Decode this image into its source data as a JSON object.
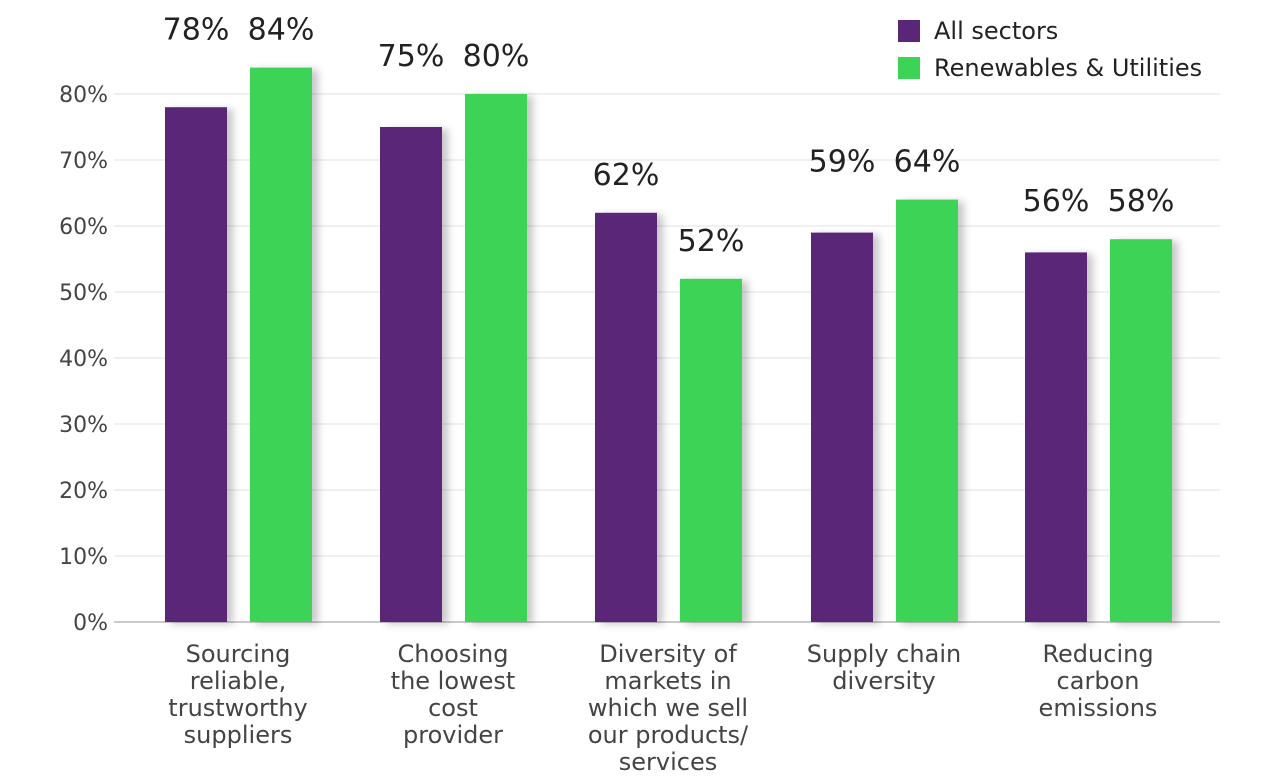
{
  "chart_data": {
    "type": "bar",
    "categories": [
      [
        "Sourcing",
        "reliable,",
        "trustworthy",
        "suppliers"
      ],
      [
        "Choosing",
        "the lowest",
        "cost",
        "provider"
      ],
      [
        "Diversity of",
        "markets in",
        "which we sell",
        "our products/",
        "services"
      ],
      [
        "Supply chain",
        "diversity"
      ],
      [
        "Reducing",
        "carbon",
        "emissions"
      ]
    ],
    "series": [
      {
        "name": "All sectors",
        "color": "#5a2678",
        "values": [
          78,
          75,
          62,
          59,
          56
        ],
        "labels": [
          "78%",
          "75%",
          "62%",
          "59%",
          "56%"
        ]
      },
      {
        "name": "Renewables & Utilities",
        "color": "#3dd356",
        "values": [
          84,
          80,
          52,
          64,
          58
        ],
        "labels": [
          "84%",
          "80%",
          "52%",
          "64%",
          "58%"
        ]
      }
    ],
    "yticks": [
      0,
      10,
      20,
      30,
      40,
      50,
      60,
      70,
      80
    ],
    "ytick_labels": [
      "0%",
      "10%",
      "20%",
      "30%",
      "40%",
      "50%",
      "60%",
      "70%",
      "80%"
    ],
    "ylim": [
      0,
      90
    ],
    "grid": true,
    "legend_position": "top-right",
    "title": "",
    "xlabel": "",
    "ylabel": ""
  }
}
